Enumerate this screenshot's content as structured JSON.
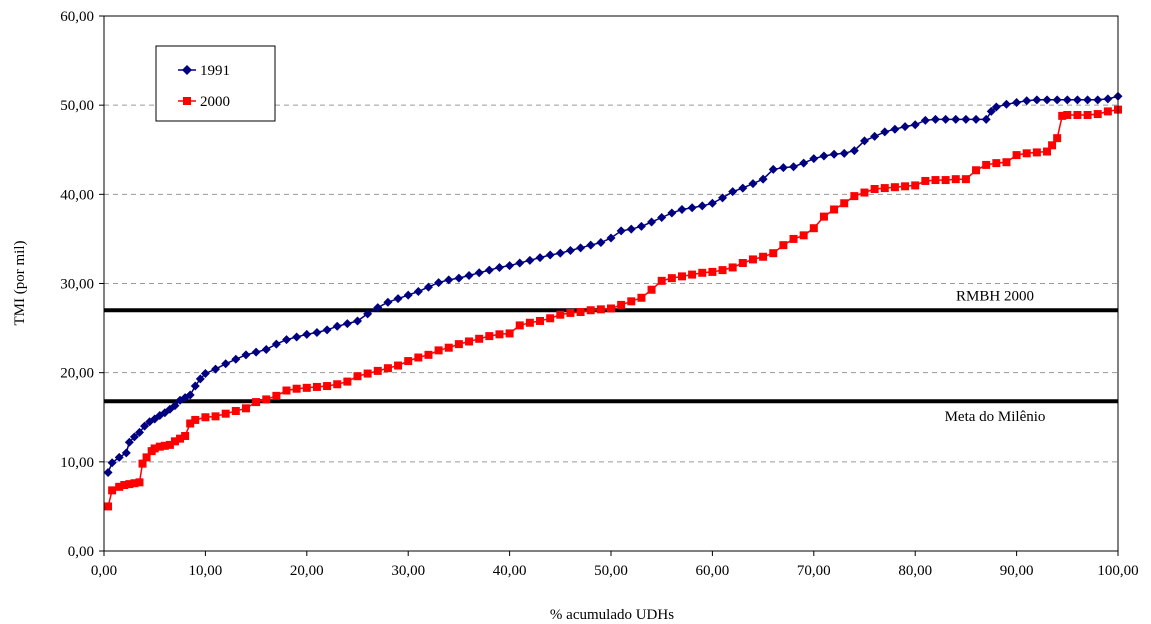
{
  "chart_data": {
    "type": "line",
    "title": "",
    "xlabel": "% acumulado UDHs",
    "ylabel": "TMI (por mil)",
    "xlim": [
      0,
      100
    ],
    "ylim": [
      0,
      60
    ],
    "x_ticks": [
      "0,00",
      "10,00",
      "20,00",
      "30,00",
      "40,00",
      "50,00",
      "60,00",
      "70,00",
      "80,00",
      "90,00",
      "100,00"
    ],
    "y_ticks": [
      "0,00",
      "10,00",
      "20,00",
      "30,00",
      "40,00",
      "50,00",
      "60,00"
    ],
    "grid": "horizontal dashed",
    "legend_position": "top-left",
    "series": [
      {
        "name": "1991",
        "color": "#000080",
        "marker": "diamond",
        "points": [
          [
            0.4,
            8.8
          ],
          [
            0.8,
            9.9
          ],
          [
            1.5,
            10.5
          ],
          [
            2.2,
            11.0
          ],
          [
            2.5,
            12.2
          ],
          [
            3.0,
            12.8
          ],
          [
            3.5,
            13.3
          ],
          [
            4.0,
            14.0
          ],
          [
            4.5,
            14.5
          ],
          [
            5.0,
            14.8
          ],
          [
            5.5,
            15.2
          ],
          [
            6.0,
            15.5
          ],
          [
            6.5,
            15.9
          ],
          [
            7.0,
            16.3
          ],
          [
            7.5,
            16.9
          ],
          [
            8.0,
            17.2
          ],
          [
            8.5,
            17.5
          ],
          [
            9.0,
            18.5
          ],
          [
            9.5,
            19.3
          ],
          [
            10.0,
            19.9
          ],
          [
            11.0,
            20.4
          ],
          [
            12.0,
            21.0
          ],
          [
            13.0,
            21.5
          ],
          [
            14.0,
            22.0
          ],
          [
            15.0,
            22.3
          ],
          [
            16.0,
            22.6
          ],
          [
            17.0,
            23.2
          ],
          [
            18.0,
            23.7
          ],
          [
            19.0,
            24.0
          ],
          [
            20.0,
            24.3
          ],
          [
            21.0,
            24.5
          ],
          [
            22.0,
            24.8
          ],
          [
            23.0,
            25.2
          ],
          [
            24.0,
            25.5
          ],
          [
            25.0,
            25.8
          ],
          [
            26.0,
            26.6
          ],
          [
            27.0,
            27.3
          ],
          [
            28.0,
            27.9
          ],
          [
            29.0,
            28.3
          ],
          [
            30.0,
            28.7
          ],
          [
            31.0,
            29.1
          ],
          [
            32.0,
            29.6
          ],
          [
            33.0,
            30.1
          ],
          [
            34.0,
            30.4
          ],
          [
            35.0,
            30.6
          ],
          [
            36.0,
            30.9
          ],
          [
            37.0,
            31.2
          ],
          [
            38.0,
            31.5
          ],
          [
            39.0,
            31.8
          ],
          [
            40.0,
            32.0
          ],
          [
            41.0,
            32.3
          ],
          [
            42.0,
            32.6
          ],
          [
            43.0,
            32.9
          ],
          [
            44.0,
            33.2
          ],
          [
            45.0,
            33.4
          ],
          [
            46.0,
            33.7
          ],
          [
            47.0,
            34.0
          ],
          [
            48.0,
            34.3
          ],
          [
            49.0,
            34.6
          ],
          [
            50.0,
            35.1
          ],
          [
            51.0,
            35.9
          ],
          [
            52.0,
            36.1
          ],
          [
            53.0,
            36.4
          ],
          [
            54.0,
            36.9
          ],
          [
            55.0,
            37.4
          ],
          [
            56.0,
            37.9
          ],
          [
            57.0,
            38.3
          ],
          [
            58.0,
            38.5
          ],
          [
            59.0,
            38.7
          ],
          [
            60.0,
            39.0
          ],
          [
            61.0,
            39.6
          ],
          [
            62.0,
            40.3
          ],
          [
            63.0,
            40.7
          ],
          [
            64.0,
            41.2
          ],
          [
            65.0,
            41.7
          ],
          [
            66.0,
            42.8
          ],
          [
            67.0,
            43.0
          ],
          [
            68.0,
            43.1
          ],
          [
            69.0,
            43.5
          ],
          [
            70.0,
            44.0
          ],
          [
            71.0,
            44.3
          ],
          [
            72.0,
            44.5
          ],
          [
            73.0,
            44.6
          ],
          [
            74.0,
            44.9
          ],
          [
            75.0,
            46.0
          ],
          [
            76.0,
            46.5
          ],
          [
            77.0,
            47.0
          ],
          [
            78.0,
            47.3
          ],
          [
            79.0,
            47.6
          ],
          [
            80.0,
            47.8
          ],
          [
            81.0,
            48.3
          ],
          [
            82.0,
            48.4
          ],
          [
            83.0,
            48.4
          ],
          [
            84.0,
            48.4
          ],
          [
            85.0,
            48.4
          ],
          [
            86.0,
            48.4
          ],
          [
            87.0,
            48.4
          ],
          [
            87.5,
            49.3
          ],
          [
            88.0,
            49.8
          ],
          [
            89.0,
            50.1
          ],
          [
            90.0,
            50.3
          ],
          [
            91.0,
            50.5
          ],
          [
            92.0,
            50.6
          ],
          [
            93.0,
            50.6
          ],
          [
            94.0,
            50.6
          ],
          [
            95.0,
            50.6
          ],
          [
            96.0,
            50.6
          ],
          [
            97.0,
            50.6
          ],
          [
            98.0,
            50.6
          ],
          [
            99.0,
            50.7
          ],
          [
            100.0,
            51.0
          ]
        ]
      },
      {
        "name": "2000",
        "color": "#FF0000",
        "marker": "square",
        "points": [
          [
            0.4,
            5.0
          ],
          [
            0.8,
            6.8
          ],
          [
            1.5,
            7.2
          ],
          [
            2.0,
            7.4
          ],
          [
            2.5,
            7.5
          ],
          [
            3.0,
            7.6
          ],
          [
            3.5,
            7.7
          ],
          [
            3.8,
            9.8
          ],
          [
            4.2,
            10.5
          ],
          [
            4.7,
            11.2
          ],
          [
            5.0,
            11.5
          ],
          [
            5.5,
            11.7
          ],
          [
            6.0,
            11.8
          ],
          [
            6.5,
            11.9
          ],
          [
            7.0,
            12.3
          ],
          [
            7.5,
            12.6
          ],
          [
            8.0,
            12.9
          ],
          [
            8.5,
            14.3
          ],
          [
            9.0,
            14.7
          ],
          [
            10.0,
            15.0
          ],
          [
            11.0,
            15.1
          ],
          [
            12.0,
            15.4
          ],
          [
            13.0,
            15.7
          ],
          [
            14.0,
            16.0
          ],
          [
            15.0,
            16.7
          ],
          [
            16.0,
            17.0
          ],
          [
            17.0,
            17.4
          ],
          [
            18.0,
            18.0
          ],
          [
            19.0,
            18.2
          ],
          [
            20.0,
            18.3
          ],
          [
            21.0,
            18.4
          ],
          [
            22.0,
            18.5
          ],
          [
            23.0,
            18.7
          ],
          [
            24.0,
            19.0
          ],
          [
            25.0,
            19.6
          ],
          [
            26.0,
            19.9
          ],
          [
            27.0,
            20.2
          ],
          [
            28.0,
            20.5
          ],
          [
            29.0,
            20.8
          ],
          [
            30.0,
            21.3
          ],
          [
            31.0,
            21.7
          ],
          [
            32.0,
            22.0
          ],
          [
            33.0,
            22.5
          ],
          [
            34.0,
            22.8
          ],
          [
            35.0,
            23.2
          ],
          [
            36.0,
            23.5
          ],
          [
            37.0,
            23.8
          ],
          [
            38.0,
            24.1
          ],
          [
            39.0,
            24.3
          ],
          [
            40.0,
            24.4
          ],
          [
            41.0,
            25.3
          ],
          [
            42.0,
            25.6
          ],
          [
            43.0,
            25.8
          ],
          [
            44.0,
            26.1
          ],
          [
            45.0,
            26.5
          ],
          [
            46.0,
            26.7
          ],
          [
            47.0,
            26.8
          ],
          [
            48.0,
            27.0
          ],
          [
            49.0,
            27.1
          ],
          [
            50.0,
            27.2
          ],
          [
            51.0,
            27.6
          ],
          [
            52.0,
            28.0
          ],
          [
            53.0,
            28.4
          ],
          [
            54.0,
            29.3
          ],
          [
            55.0,
            30.3
          ],
          [
            56.0,
            30.6
          ],
          [
            57.0,
            30.8
          ],
          [
            58.0,
            31.0
          ],
          [
            59.0,
            31.2
          ],
          [
            60.0,
            31.3
          ],
          [
            61.0,
            31.5
          ],
          [
            62.0,
            31.8
          ],
          [
            63.0,
            32.3
          ],
          [
            64.0,
            32.7
          ],
          [
            65.0,
            33.0
          ],
          [
            66.0,
            33.4
          ],
          [
            67.0,
            34.3
          ],
          [
            68.0,
            35.0
          ],
          [
            69.0,
            35.4
          ],
          [
            70.0,
            36.2
          ],
          [
            71.0,
            37.5
          ],
          [
            72.0,
            38.3
          ],
          [
            73.0,
            39.0
          ],
          [
            74.0,
            39.8
          ],
          [
            75.0,
            40.2
          ],
          [
            76.0,
            40.6
          ],
          [
            77.0,
            40.7
          ],
          [
            78.0,
            40.8
          ],
          [
            79.0,
            40.9
          ],
          [
            80.0,
            41.0
          ],
          [
            81.0,
            41.5
          ],
          [
            82.0,
            41.6
          ],
          [
            83.0,
            41.6
          ],
          [
            84.0,
            41.7
          ],
          [
            85.0,
            41.7
          ],
          [
            86.0,
            42.7
          ],
          [
            87.0,
            43.3
          ],
          [
            88.0,
            43.5
          ],
          [
            89.0,
            43.6
          ],
          [
            90.0,
            44.4
          ],
          [
            91.0,
            44.6
          ],
          [
            92.0,
            44.7
          ],
          [
            93.0,
            44.8
          ],
          [
            93.5,
            45.5
          ],
          [
            94.0,
            46.3
          ],
          [
            94.5,
            48.8
          ],
          [
            95.0,
            48.9
          ],
          [
            96.0,
            48.9
          ],
          [
            97.0,
            48.9
          ],
          [
            98.0,
            49.0
          ],
          [
            99.0,
            49.3
          ],
          [
            100.0,
            49.5
          ]
        ]
      }
    ],
    "reference_lines": [
      {
        "label": "RMBH 2000",
        "y": 27.0
      },
      {
        "label": "Meta do Milênio",
        "y": 16.8
      }
    ]
  }
}
